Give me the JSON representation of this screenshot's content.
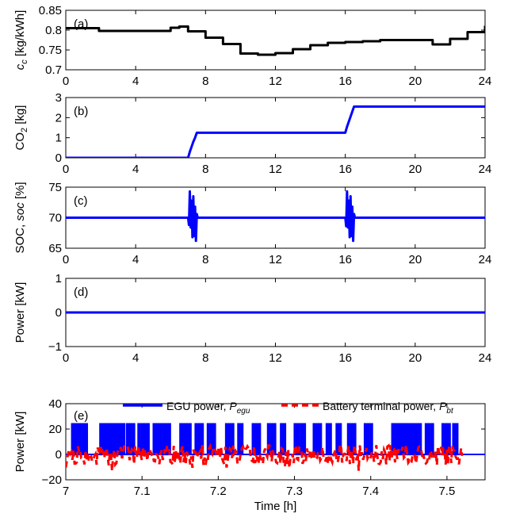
{
  "chart_data": [
    {
      "id": "a",
      "type": "line",
      "panel_label": "(a)",
      "ylabel_parts": [
        "c",
        "c",
        " [kg/kWh]"
      ],
      "xlim": [
        0,
        24
      ],
      "ylim": [
        0.7,
        0.85
      ],
      "xticks": [
        "0",
        "4",
        "8",
        "12",
        "16",
        "20",
        "24"
      ],
      "yticks": [
        "0.7",
        "0.75",
        "0.8",
        "0.85"
      ],
      "color": "#000000",
      "series": [
        {
          "step": true,
          "x": [
            0,
            1.9,
            6,
            6.5,
            7,
            8,
            9,
            10,
            11,
            12,
            13,
            14,
            15,
            16,
            17,
            18,
            19,
            20,
            21,
            22,
            23,
            24
          ],
          "values": [
            0.805,
            0.798,
            0.806,
            0.809,
            0.797,
            0.781,
            0.765,
            0.741,
            0.738,
            0.742,
            0.752,
            0.762,
            0.768,
            0.77,
            0.772,
            0.775,
            0.775,
            0.775,
            0.764,
            0.778,
            0.795,
            0.811
          ]
        }
      ]
    },
    {
      "id": "b",
      "type": "line",
      "panel_label": "(b)",
      "ylabel_parts": [
        "CO",
        "2",
        " [kg]"
      ],
      "xlim": [
        0,
        24
      ],
      "ylim": [
        0,
        3
      ],
      "xticks": [
        "0",
        "4",
        "8",
        "12",
        "16",
        "20",
        "24"
      ],
      "yticks": [
        "0",
        "1",
        "2",
        "3"
      ],
      "color": "#0000ff",
      "series": [
        {
          "x": [
            0,
            7.0,
            7.1,
            7.2,
            7.3,
            7.4,
            7.5,
            16.0,
            16.1,
            16.2,
            16.3,
            16.4,
            16.5,
            24
          ],
          "values": [
            0,
            0,
            0.3,
            0.55,
            0.8,
            1.0,
            1.25,
            1.25,
            1.55,
            1.8,
            2.05,
            2.3,
            2.55,
            2.55
          ]
        }
      ]
    },
    {
      "id": "c",
      "type": "line",
      "panel_label": "(c)",
      "ylabel_parts": [
        "SOC, ",
        "soc",
        " [%]"
      ],
      "xlim": [
        0,
        24
      ],
      "ylim": [
        65,
        75
      ],
      "xticks": [
        "0",
        "4",
        "8",
        "12",
        "16",
        "20",
        "24"
      ],
      "yticks": [
        "65",
        "70",
        "75"
      ],
      "color": "#0000ff",
      "series": [
        {
          "x": [
            0,
            7.0,
            7.05,
            7.1,
            7.15,
            7.2,
            7.25,
            7.3,
            7.35,
            7.4,
            7.45,
            7.5,
            7.55,
            16.0,
            16.05,
            16.1,
            16.15,
            16.2,
            16.25,
            16.3,
            16.35,
            16.4,
            16.45,
            16.5,
            16.55,
            24
          ],
          "values": [
            70,
            70,
            68.8,
            74.3,
            68.4,
            72.8,
            66.8,
            73.5,
            67.0,
            71.8,
            66.2,
            70.6,
            70,
            70,
            68.6,
            74.3,
            68.4,
            72.8,
            66.8,
            73.5,
            67.0,
            71.8,
            66.2,
            70.6,
            70,
            70
          ]
        }
      ]
    },
    {
      "id": "d",
      "type": "line",
      "panel_label": "(d)",
      "ylabel_parts": [
        "Power [kW]",
        "",
        ""
      ],
      "xlim": [
        0,
        24
      ],
      "ylim": [
        -1,
        1
      ],
      "xticks": [
        "0",
        "4",
        "8",
        "12",
        "16",
        "20",
        "24"
      ],
      "yticks": [
        "−1",
        "0",
        "1"
      ],
      "color": "#0000ff",
      "series": [
        {
          "x": [
            0,
            24
          ],
          "values": [
            0,
            0
          ]
        }
      ]
    },
    {
      "id": "e",
      "type": "line",
      "panel_label": "(e)",
      "ylabel_parts": [
        "Power [kW]",
        "",
        ""
      ],
      "xlabel": "Time [h]",
      "xlim": [
        7,
        7.55
      ],
      "ylim": [
        -20,
        40
      ],
      "xticks": [
        "7",
        "7.1",
        "7.2",
        "7.3",
        "7.4",
        "7.5"
      ],
      "yticks": [
        "−20",
        "0",
        "20",
        "40"
      ],
      "series": [
        {
          "name_parts": [
            "EGU power, ",
            "P",
            "egu"
          ],
          "color": "#0000ff",
          "style": "solid",
          "pulse_width": 0.002,
          "pulse_height": 24,
          "pulses": [
            7.008,
            7.011,
            7.014,
            7.018,
            7.022,
            7.026,
            7.045,
            7.048,
            7.051,
            7.054,
            7.057,
            7.06,
            7.063,
            7.066,
            7.069,
            7.072,
            7.075,
            7.08,
            7.084,
            7.088,
            7.095,
            7.099,
            7.103,
            7.107,
            7.115,
            7.119,
            7.123,
            7.127,
            7.131,
            7.135,
            7.15,
            7.154,
            7.158,
            7.162,
            7.17,
            7.174,
            7.178,
            7.186,
            7.19,
            7.194,
            7.21,
            7.214,
            7.218,
            7.226,
            7.23,
            7.245,
            7.249,
            7.253,
            7.265,
            7.269,
            7.273,
            7.282,
            7.286,
            7.3,
            7.304,
            7.308,
            7.312,
            7.325,
            7.329,
            7.333,
            7.342,
            7.346,
            7.355,
            7.359,
            7.37,
            7.374,
            7.378,
            7.392,
            7.396,
            7.4,
            7.428,
            7.431,
            7.434,
            7.437,
            7.44,
            7.443,
            7.446,
            7.449,
            7.452,
            7.455,
            7.458,
            7.461,
            7.464,
            7.472,
            7.476,
            7.48,
            7.494,
            7.498,
            7.502,
            7.508,
            7.512
          ]
        },
        {
          "name_parts": [
            "Battery terminal power, ",
            "P",
            "bt"
          ],
          "color": "#ff0000",
          "style": "dashed",
          "amplitude": 13
        }
      ]
    }
  ]
}
